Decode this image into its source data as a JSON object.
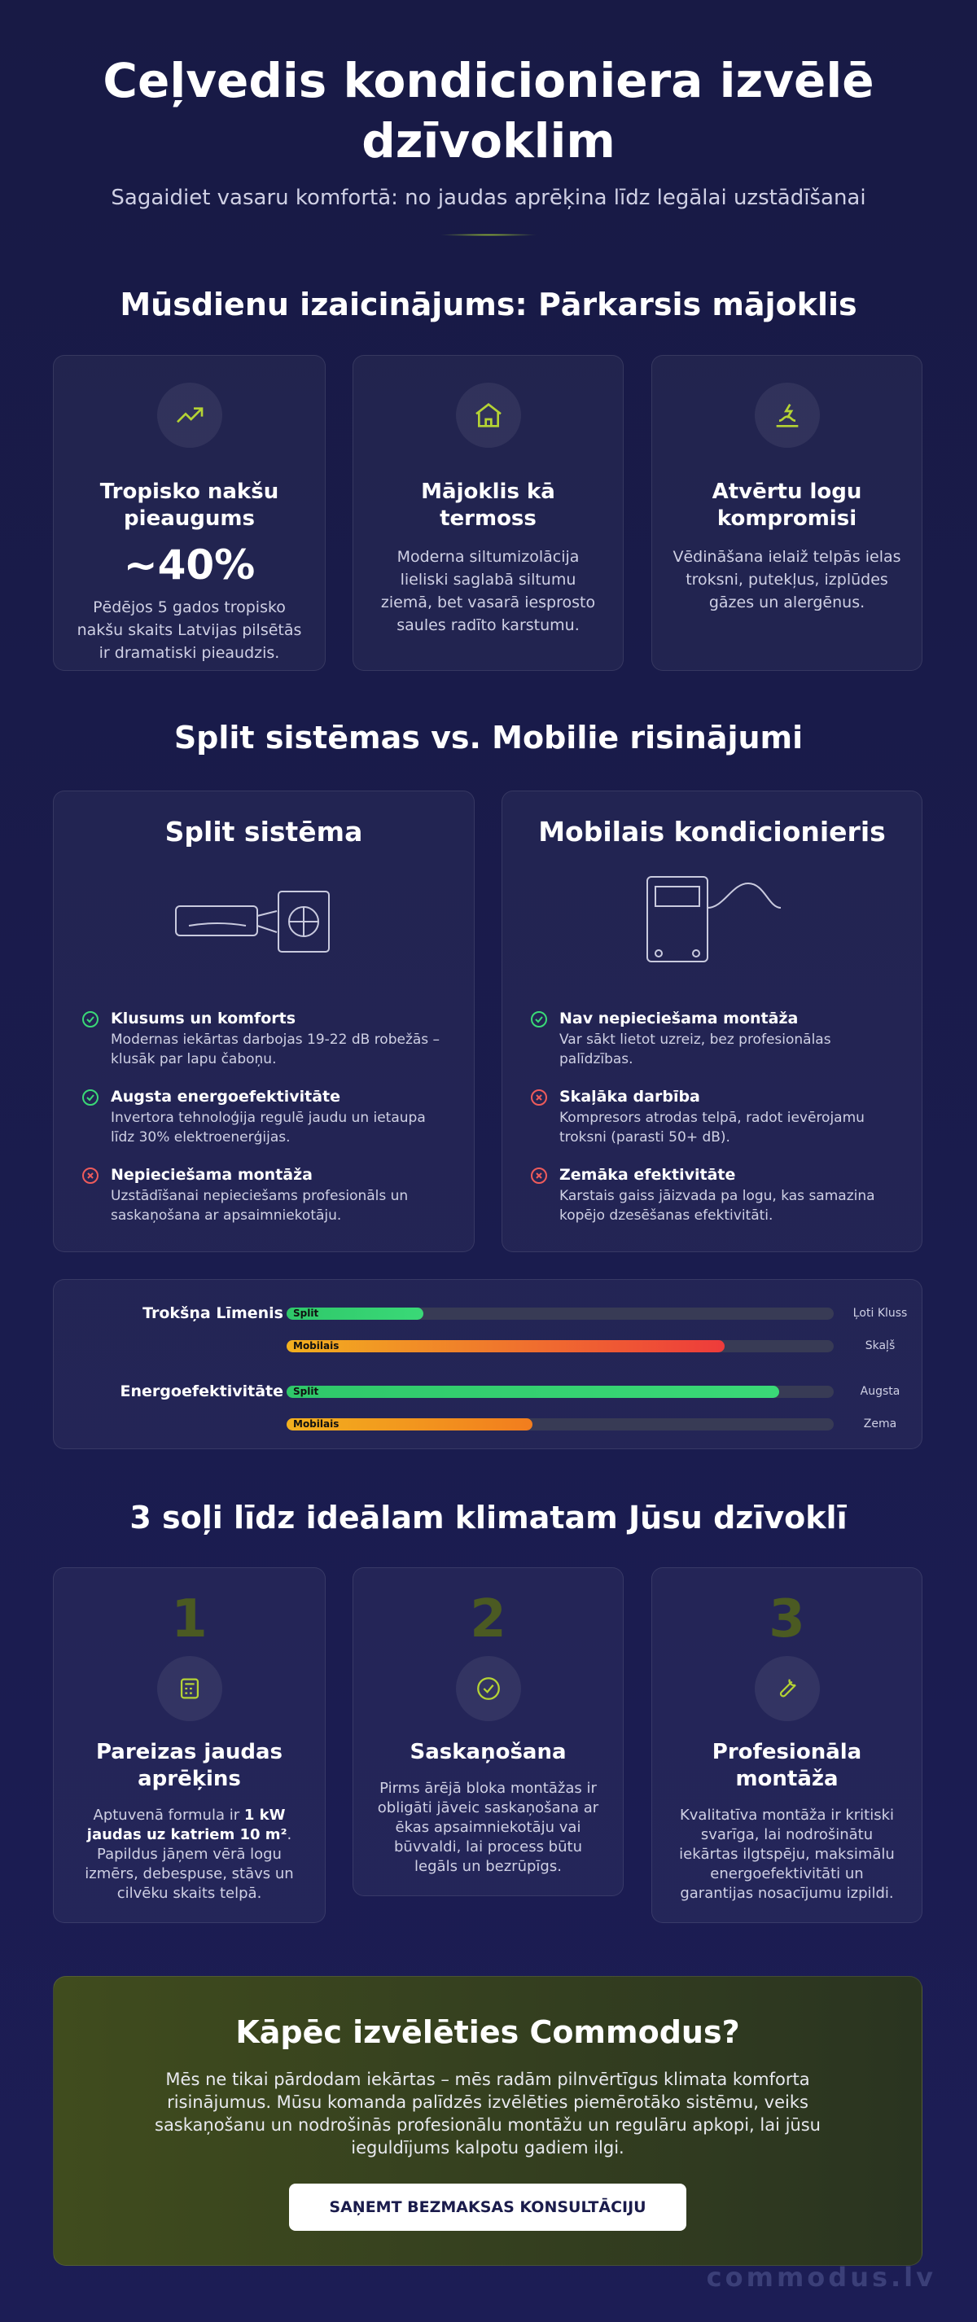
{
  "header": {
    "title": "Ceļvedis kondicioniera izvēlē dzīvoklim",
    "subtitle": "Sagaidiet vasaru komfortā: no jaudas aprēķina līdz legālai uzstādīšanai"
  },
  "challenge": {
    "title": "Mūsdienu izaicinājums: Pārkarsis mājoklis",
    "cards": [
      {
        "title": "Tropisko nakšu pieaugums",
        "stat": "~40%",
        "text": "Pēdējos 5 gados tropisko nakšu skaits Latvijas pilsētās ir dramatiski pieaudzis."
      },
      {
        "title": "Mājoklis kā termoss",
        "text": "Moderna siltumizolācija lieliski saglabā siltumu ziemā, bet vasarā iesprosto saules radīto karstumu."
      },
      {
        "title": "Atvērtu logu kompromisi",
        "text": "Vēdināšana ielaiž telpās ielas troksni, putekļus, izplūdes gāzes un alergēnus."
      }
    ]
  },
  "comparison": {
    "title": "Split sistēmas vs. Mobilie risinājumi",
    "columns": [
      {
        "title": "Split sistēma",
        "items": [
          {
            "title": "Klusums un komforts",
            "text": "Modernas iekārtas darbojas 19-22 dB robežās – klusāk par lapu čaboņu."
          },
          {
            "title": "Augsta energoefektivitāte",
            "text": "Invertora tehnoloģija regulē jaudu un ietaupa līdz 30% elektroenerģijas."
          },
          {
            "title": "Nepieciešama montāža",
            "text": "Uzstādīšanai nepieciešams profesionāls un saskaņošana ar apsaimniekotāju."
          }
        ]
      },
      {
        "title": "Mobilais kondicionieris",
        "items": [
          {
            "title": "Nav nepieciešama montāža",
            "text": "Var sākt lietot uzreiz, bez profesionālas palīdzības."
          },
          {
            "title": "Skaļāka darbība",
            "text": "Kompresors atrodas telpā, radot ievērojamu troksni (parasti 50+ dB)."
          },
          {
            "title": "Zemāka efektivitāte",
            "text": "Karstais gaiss jāizvada pa logu, kas samazina kopējo dzesēšanas efektivitāti."
          }
        ]
      }
    ],
    "metrics": [
      {
        "label": "Trokšņa Līmenis",
        "rows": [
          {
            "name": "Split",
            "value": 25,
            "end": "Ļoti Kluss"
          },
          {
            "name": "Mobilais",
            "value": 80,
            "end": "Skaļš"
          }
        ]
      },
      {
        "label": "Energoefektivitāte",
        "rows": [
          {
            "name": "Split",
            "value": 90,
            "end": "Augsta"
          },
          {
            "name": "Mobilais",
            "value": 45,
            "end": "Zema"
          }
        ]
      }
    ]
  },
  "steps": {
    "title": "3 soļi līdz ideālam klimatam Jūsu dzīvoklī",
    "items": [
      {
        "number": "1",
        "title": "Pareizas jaudas aprēķins",
        "text_before": "Aptuvenā formula ir",
        "text_bold": "1 kW jaudas uz katriem 10 m²",
        "text_after": ". Papildus jāņem vērā logu izmērs, debespuse, stāvs un cilvēku skaits telpā."
      },
      {
        "number": "2",
        "title": "Saskaņošana",
        "text": "Pirms ārējā bloka montāžas ir obligāti jāveic saskaņošana ar ēkas apsaimniekotāju vai būvvaldi, lai process būtu legāls un bezrūpīgs."
      },
      {
        "number": "3",
        "title": "Profesionāla montāža",
        "text": "Kvalitatīva montāža ir kritiski svarīga, lai nodrošinātu iekārtas ilgtspēju, maksimālu energoefektivitāti un garantijas nosacījumu izpildi."
      }
    ]
  },
  "cta": {
    "title": "Kāpēc izvēlēties Commodus?",
    "text": "Mēs ne tikai pārdodam iekārtas – mēs radām pilnvērtīgus klimata komforta risinājumus. Mūsu komanda palīdzēs izvēlēties piemērotāko sistēmu, veiks saskaņošanu un nodrošinās profesionālu montāžu un regulāru apkopi, lai jūsu ieguldījums kalpotu gadiem ilgi.",
    "button": "SAŅEMT BEZMAKSAS KONSULTĀCIJU"
  },
  "footer": {
    "brand": "commodus.lv"
  }
}
